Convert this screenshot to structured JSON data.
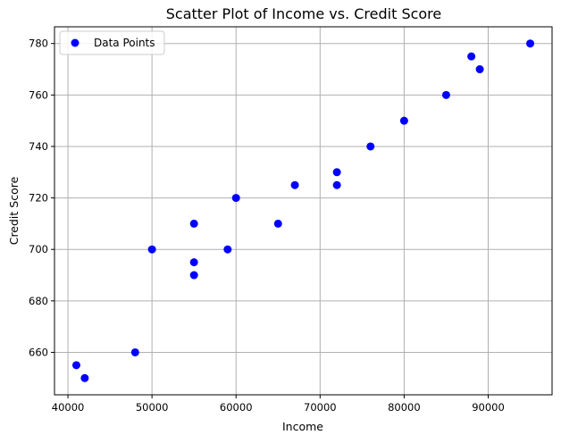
{
  "chart_data": {
    "type": "scatter",
    "title": "Scatter Plot of Income vs. Credit Score",
    "xlabel": "Income",
    "ylabel": "Credit Score",
    "xlim": [
      38400,
      97600
    ],
    "ylim": [
      643.5,
      786.5
    ],
    "x_ticks": [
      40000,
      50000,
      60000,
      70000,
      80000,
      90000
    ],
    "y_ticks": [
      660,
      680,
      700,
      720,
      740,
      760,
      780
    ],
    "x_tick_labels": [
      "40000",
      "50000",
      "60000",
      "70000",
      "80000",
      "90000"
    ],
    "y_tick_labels": [
      "660",
      "680",
      "700",
      "720",
      "740",
      "760",
      "780"
    ],
    "grid": true,
    "legend": {
      "position": "top-left",
      "entries": [
        "Data Points"
      ]
    },
    "series": [
      {
        "name": "Data Points",
        "color": "#0000ff",
        "points": [
          {
            "x": 41000,
            "y": 655
          },
          {
            "x": 42000,
            "y": 650
          },
          {
            "x": 48000,
            "y": 660
          },
          {
            "x": 50000,
            "y": 700
          },
          {
            "x": 55000,
            "y": 710
          },
          {
            "x": 55000,
            "y": 695
          },
          {
            "x": 55000,
            "y": 690
          },
          {
            "x": 59000,
            "y": 700
          },
          {
            "x": 60000,
            "y": 720
          },
          {
            "x": 65000,
            "y": 710
          },
          {
            "x": 67000,
            "y": 725
          },
          {
            "x": 72000,
            "y": 730
          },
          {
            "x": 72000,
            "y": 725
          },
          {
            "x": 76000,
            "y": 740
          },
          {
            "x": 80000,
            "y": 750
          },
          {
            "x": 85000,
            "y": 760
          },
          {
            "x": 88000,
            "y": 775
          },
          {
            "x": 89000,
            "y": 770
          },
          {
            "x": 95000,
            "y": 780
          }
        ]
      }
    ]
  }
}
